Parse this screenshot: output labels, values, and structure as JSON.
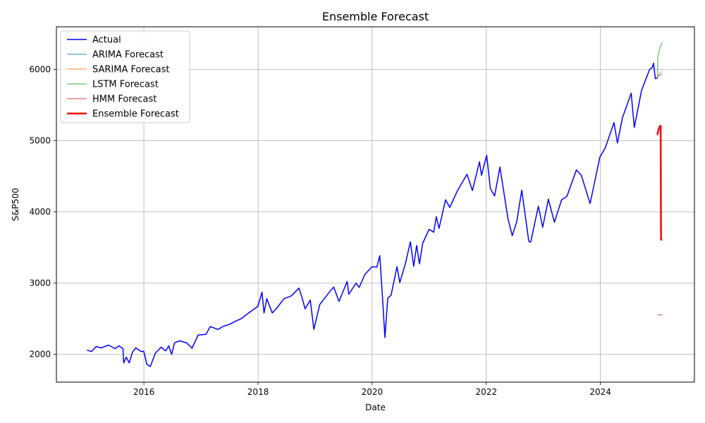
{
  "chart_data": {
    "type": "line",
    "title": "Ensemble Forecast",
    "xlabel": "Date",
    "ylabel": "S&P500",
    "x_type": "date",
    "xlim": [
      "2014-06-20",
      "2025-08-25"
    ],
    "ylim": [
      1610,
      6600
    ],
    "grid": true,
    "legend_position": "top-left",
    "x_ticks": [
      {
        "value": "2016-01-01",
        "label": "2016"
      },
      {
        "value": "2018-01-01",
        "label": "2018"
      },
      {
        "value": "2020-01-01",
        "label": "2020"
      },
      {
        "value": "2022-01-01",
        "label": "2022"
      },
      {
        "value": "2024-01-01",
        "label": "2024"
      }
    ],
    "y_ticks": [
      {
        "value": 2000,
        "label": "2000"
      },
      {
        "value": 3000,
        "label": "3000"
      },
      {
        "value": 4000,
        "label": "4000"
      },
      {
        "value": 5000,
        "label": "5000"
      },
      {
        "value": 6000,
        "label": "6000"
      }
    ],
    "series": [
      {
        "name": "Actual",
        "color": "#0000ff",
        "line_width": 1.5,
        "opacity": 1,
        "points": [
          [
            "2015-01-02",
            2058
          ],
          [
            "2015-02-01",
            2040
          ],
          [
            "2015-03-01",
            2110
          ],
          [
            "2015-04-01",
            2090
          ],
          [
            "2015-05-20",
            2130
          ],
          [
            "2015-07-01",
            2080
          ],
          [
            "2015-07-25",
            2120
          ],
          [
            "2015-08-20",
            2080
          ],
          [
            "2015-08-25",
            1880
          ],
          [
            "2015-09-10",
            1960
          ],
          [
            "2015-09-29",
            1880
          ],
          [
            "2015-10-20",
            2030
          ],
          [
            "2015-11-10",
            2090
          ],
          [
            "2015-12-15",
            2040
          ],
          [
            "2015-12-31",
            2044
          ],
          [
            "2016-01-20",
            1860
          ],
          [
            "2016-02-11",
            1829
          ],
          [
            "2016-03-15",
            2020
          ],
          [
            "2016-04-20",
            2100
          ],
          [
            "2016-05-20",
            2050
          ],
          [
            "2016-06-08",
            2120
          ],
          [
            "2016-06-27",
            2000
          ],
          [
            "2016-07-15",
            2160
          ],
          [
            "2016-08-15",
            2190
          ],
          [
            "2016-10-01",
            2160
          ],
          [
            "2016-11-04",
            2085
          ],
          [
            "2016-12-13",
            2270
          ],
          [
            "2017-02-01",
            2280
          ],
          [
            "2017-03-01",
            2390
          ],
          [
            "2017-04-20",
            2350
          ],
          [
            "2017-05-20",
            2390
          ],
          [
            "2017-07-01",
            2420
          ],
          [
            "2017-08-15",
            2470
          ],
          [
            "2017-09-15",
            2500
          ],
          [
            "2017-11-01",
            2580
          ],
          [
            "2017-12-31",
            2674
          ],
          [
            "2018-01-26",
            2872
          ],
          [
            "2018-02-08",
            2581
          ],
          [
            "2018-02-26",
            2780
          ],
          [
            "2018-04-02",
            2582
          ],
          [
            "2018-05-01",
            2650
          ],
          [
            "2018-06-15",
            2780
          ],
          [
            "2018-08-01",
            2820
          ],
          [
            "2018-09-20",
            2930
          ],
          [
            "2018-10-10",
            2790
          ],
          [
            "2018-10-29",
            2640
          ],
          [
            "2018-12-01",
            2760
          ],
          [
            "2018-12-24",
            2351
          ],
          [
            "2019-01-31",
            2700
          ],
          [
            "2019-04-01",
            2870
          ],
          [
            "2019-04-30",
            2945
          ],
          [
            "2019-06-03",
            2744
          ],
          [
            "2019-07-25",
            3025
          ],
          [
            "2019-08-05",
            2844
          ],
          [
            "2019-09-20",
            3000
          ],
          [
            "2019-10-10",
            2940
          ],
          [
            "2019-11-15",
            3120
          ],
          [
            "2019-12-31",
            3230
          ],
          [
            "2020-01-31",
            3225
          ],
          [
            "2020-02-19",
            3386
          ],
          [
            "2020-03-09",
            2746
          ],
          [
            "2020-03-23",
            2237
          ],
          [
            "2020-04-10",
            2790
          ],
          [
            "2020-05-01",
            2830
          ],
          [
            "2020-06-08",
            3232
          ],
          [
            "2020-06-26",
            3009
          ],
          [
            "2020-08-01",
            3270
          ],
          [
            "2020-09-02",
            3580
          ],
          [
            "2020-09-23",
            3237
          ],
          [
            "2020-10-12",
            3530
          ],
          [
            "2020-10-30",
            3270
          ],
          [
            "2020-11-20",
            3560
          ],
          [
            "2020-12-31",
            3756
          ],
          [
            "2021-01-29",
            3714
          ],
          [
            "2021-02-15",
            3934
          ],
          [
            "2021-03-04",
            3768
          ],
          [
            "2021-04-15",
            4170
          ],
          [
            "2021-05-12",
            4063
          ],
          [
            "2021-06-30",
            4297
          ],
          [
            "2021-08-30",
            4528
          ],
          [
            "2021-10-04",
            4300
          ],
          [
            "2021-11-18",
            4704
          ],
          [
            "2021-12-01",
            4513
          ],
          [
            "2022-01-03",
            4796
          ],
          [
            "2022-01-27",
            4326
          ],
          [
            "2022-02-23",
            4225
          ],
          [
            "2022-03-29",
            4631
          ],
          [
            "2022-05-20",
            3901
          ],
          [
            "2022-06-16",
            3666
          ],
          [
            "2022-07-15",
            3863
          ],
          [
            "2022-08-16",
            4305
          ],
          [
            "2022-09-30",
            3585
          ],
          [
            "2022-10-12",
            3577
          ],
          [
            "2022-11-30",
            4080
          ],
          [
            "2022-12-28",
            3783
          ],
          [
            "2023-02-02",
            4179
          ],
          [
            "2023-03-13",
            3855
          ],
          [
            "2023-04-28",
            4170
          ],
          [
            "2023-06-01",
            4220
          ],
          [
            "2023-07-31",
            4589
          ],
          [
            "2023-09-01",
            4515
          ],
          [
            "2023-10-27",
            4117
          ],
          [
            "2023-12-29",
            4770
          ],
          [
            "2024-02-01",
            4900
          ],
          [
            "2024-03-28",
            5254
          ],
          [
            "2024-04-19",
            4967
          ],
          [
            "2024-05-21",
            5320
          ],
          [
            "2024-07-16",
            5667
          ],
          [
            "2024-08-05",
            5186
          ],
          [
            "2024-09-20",
            5703
          ],
          [
            "2024-10-18",
            5864
          ],
          [
            "2024-11-11",
            6000
          ],
          [
            "2024-11-29",
            6032
          ],
          [
            "2024-12-06",
            6090
          ],
          [
            "2024-12-18",
            5872
          ],
          [
            "2024-12-31",
            5882
          ]
        ]
      },
      {
        "name": "ARIMA Forecast",
        "color": "#1f77b4",
        "line_width": 1.5,
        "opacity": 0.6,
        "points": [
          [
            "2024-12-31",
            5882
          ],
          [
            "2025-01-10",
            5925
          ],
          [
            "2025-01-31",
            5930
          ]
        ]
      },
      {
        "name": "SARIMA Forecast",
        "color": "#ff7f0e",
        "line_width": 1.5,
        "opacity": 0.6,
        "points": [
          [
            "2024-12-31",
            5885
          ],
          [
            "2025-01-15",
            5950
          ],
          [
            "2025-01-31",
            5975
          ]
        ]
      },
      {
        "name": "LSTM Forecast",
        "color": "#2ca02c",
        "line_width": 1.5,
        "opacity": 0.6,
        "points": [
          [
            "2024-12-31",
            5890
          ],
          [
            "2025-01-03",
            6180
          ],
          [
            "2025-01-15",
            6300
          ],
          [
            "2025-01-31",
            6380
          ]
        ]
      },
      {
        "name": "HMM Forecast",
        "color": "#d62728",
        "line_width": 1.5,
        "opacity": 0.6,
        "points": [
          [
            "2024-12-31",
            2555
          ],
          [
            "2025-01-31",
            2555
          ]
        ]
      },
      {
        "name": "Ensemble Forecast",
        "color": "#ff0000",
        "line_width": 2.5,
        "opacity": 1,
        "points": [
          [
            "2024-12-31",
            5080
          ],
          [
            "2025-01-06",
            5150
          ],
          [
            "2025-01-15",
            5200
          ],
          [
            "2025-01-21",
            5210
          ],
          [
            "2025-01-23",
            3610
          ],
          [
            "2025-01-31",
            3610
          ]
        ]
      }
    ]
  }
}
